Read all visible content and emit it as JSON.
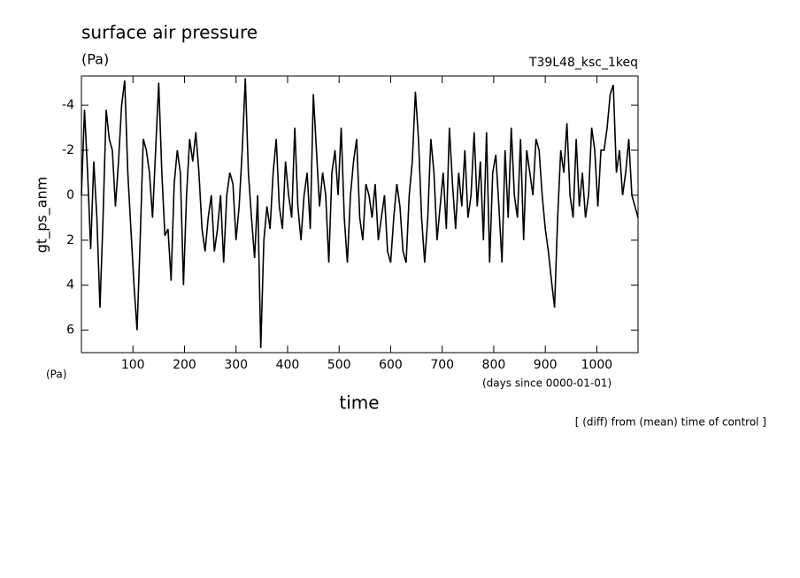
{
  "chart_data": {
    "type": "line",
    "title": "surface air pressure",
    "y_unit": "(Pa)",
    "experiment": "T39L48_ksc_1keq",
    "y_label": "gt_ps_anm",
    "y_unit_bottom": "(Pa)",
    "x_unit": "(days since 0000-01-01)",
    "x_label": "time",
    "note": "[ (diff) from (mean) time of control ]",
    "xlim": [
      0,
      1080
    ],
    "ylim": [
      -5.3,
      7
    ],
    "y_reversed": true,
    "xticks": [
      100,
      200,
      300,
      400,
      500,
      600,
      700,
      800,
      900,
      1000
    ],
    "yticks": [
      -4,
      -2,
      0,
      2,
      4,
      6
    ],
    "x": [
      0,
      6,
      12,
      18,
      24,
      30,
      36,
      42,
      48,
      54,
      60,
      66,
      72,
      78,
      84,
      90,
      96,
      102,
      108,
      114,
      120,
      126,
      132,
      138,
      144,
      150,
      156,
      162,
      168,
      174,
      180,
      186,
      192,
      198,
      204,
      210,
      216,
      222,
      228,
      234,
      240,
      246,
      252,
      258,
      264,
      270,
      276,
      282,
      288,
      294,
      300,
      306,
      312,
      318,
      324,
      330,
      336,
      342,
      348,
      354,
      360,
      366,
      372,
      378,
      384,
      390,
      396,
      402,
      408,
      414,
      420,
      426,
      432,
      438,
      444,
      450,
      456,
      462,
      468,
      474,
      480,
      486,
      492,
      498,
      504,
      510,
      516,
      522,
      528,
      534,
      540,
      546,
      552,
      558,
      564,
      570,
      576,
      582,
      588,
      594,
      600,
      606,
      612,
      618,
      624,
      630,
      636,
      642,
      648,
      654,
      660,
      666,
      672,
      678,
      684,
      690,
      696,
      702,
      708,
      714,
      720,
      726,
      732,
      738,
      744,
      750,
      756,
      762,
      768,
      774,
      780,
      786,
      792,
      798,
      804,
      810,
      816,
      822,
      828,
      834,
      840,
      846,
      852,
      858,
      864,
      870,
      876,
      882,
      888,
      894,
      900,
      906,
      912,
      918,
      924,
      930,
      936,
      942,
      948,
      954,
      960,
      966,
      972,
      978,
      984,
      990,
      996,
      1002,
      1008,
      1014,
      1020,
      1026,
      1032,
      1038,
      1044,
      1050,
      1056,
      1062,
      1068,
      1074,
      1080
    ],
    "series": [
      {
        "color": "#000000",
        "values": [
          0,
          -3.8,
          -1,
          2.4,
          -1.5,
          1,
          5,
          1,
          -3.8,
          -2.5,
          -2,
          0.5,
          -1.5,
          -4,
          -5.1,
          -1,
          1.5,
          4,
          6,
          2,
          -2.5,
          -2,
          -1,
          1,
          -2,
          -5,
          -1,
          1.8,
          1.5,
          3.8,
          -0.5,
          -2,
          -1,
          4,
          0,
          -2.5,
          -1.5,
          -2.8,
          -1,
          1.5,
          2.5,
          1,
          0,
          2.5,
          1.5,
          0,
          3,
          0,
          -1,
          -0.5,
          2,
          0.5,
          -2,
          -5.2,
          -1,
          1,
          2.8,
          0,
          6.8,
          2,
          0.5,
          1.5,
          -1,
          -2.5,
          0.5,
          1.5,
          -1.5,
          0,
          1,
          -3,
          0.5,
          2,
          0,
          -1,
          1.5,
          -4.5,
          -2,
          0.5,
          -1,
          0,
          3,
          -1,
          -2,
          0,
          -3,
          1,
          3,
          0,
          -1.5,
          -2.5,
          1,
          2,
          -0.5,
          0,
          1,
          -0.5,
          2,
          1,
          0,
          2.5,
          3,
          1,
          -0.5,
          0.5,
          2.5,
          3,
          0,
          -1.5,
          -4.6,
          -2.5,
          1,
          3,
          1,
          -2.5,
          -1,
          2,
          0.5,
          -1,
          1.5,
          -3,
          -0.5,
          1.5,
          -1,
          0.5,
          -2,
          1,
          0,
          -2.8,
          0.5,
          -1.5,
          2,
          -2.8,
          3,
          -1,
          -1.8,
          0.5,
          3,
          -2,
          1,
          -3,
          0,
          1,
          -2.5,
          2,
          -2,
          -1,
          0,
          -2.5,
          -2,
          0,
          1.5,
          2.5,
          3.8,
          5,
          1,
          -2,
          -1,
          -3.2,
          0,
          1,
          -2.5,
          0.5,
          -1,
          1,
          0,
          -3,
          -2,
          0.5,
          -2,
          -2,
          -3,
          -4.5,
          -4.9,
          -1,
          -2,
          0,
          -1,
          -2.5,
          0,
          0.5,
          1
        ]
      }
    ]
  }
}
